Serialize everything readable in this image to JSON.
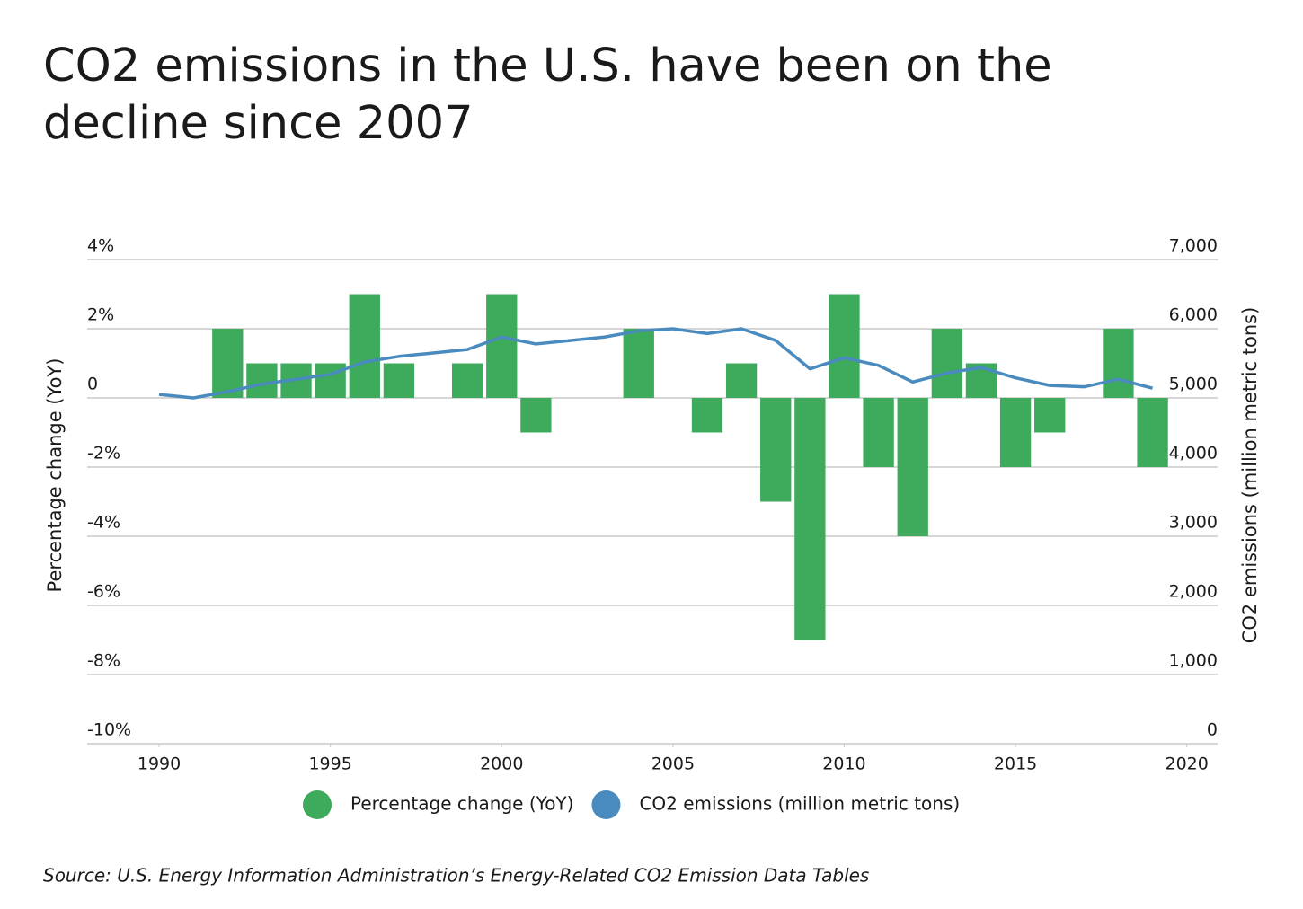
{
  "chart_data": {
    "type": "bar",
    "title": "CO2 emissions in the U.S. have been on the decline since 2007",
    "y_label": "Percentage change (YoY)",
    "y2_label": "CO2 emissions (million metric tons)",
    "source": "Source:  U.S. Energy Information Administration’s Energy-Related CO2 Emission Data Tables",
    "x": [
      1990,
      1991,
      1992,
      1993,
      1994,
      1995,
      1996,
      1997,
      1998,
      1999,
      2000,
      2001,
      2002,
      2003,
      2004,
      2005,
      2006,
      2007,
      2008,
      2009,
      2010,
      2011,
      2012,
      2013,
      2014,
      2015,
      2016,
      2017,
      2018,
      2019
    ],
    "xlim": [
      1987.9,
      2020.9
    ],
    "xticks": [
      1990,
      1995,
      2000,
      2005,
      2010,
      2015,
      2020
    ],
    "ylim": [
      -10,
      4
    ],
    "yticks": [
      {
        "value": -10,
        "label": "-10%"
      },
      {
        "value": -8,
        "label": "-8%"
      },
      {
        "value": -6,
        "label": "-6%"
      },
      {
        "value": -4,
        "label": "-4%"
      },
      {
        "value": -2,
        "label": "-2%"
      },
      0,
      {
        "value": 2,
        "label": "2%"
      },
      {
        "value": 4,
        "label": "4%"
      }
    ],
    "y2lim": [
      0,
      7000
    ],
    "y2ticks": [
      0,
      {
        "value": 1000,
        "label": "1,000"
      },
      {
        "value": 2000,
        "label": "2,000"
      },
      {
        "value": 3000,
        "label": "3,000"
      },
      {
        "value": 4000,
        "label": "4,000"
      },
      {
        "value": 5000,
        "label": "5,000"
      },
      {
        "value": 6000,
        "label": "6,000"
      },
      {
        "value": 7000,
        "label": "7,000"
      }
    ],
    "grid": true,
    "series": [
      {
        "name": "Percentage change (YoY)",
        "type": "bar",
        "color": "#3daa5c",
        "values": [
          0,
          0,
          2,
          1,
          1,
          1,
          3,
          1,
          0,
          1,
          3,
          -1,
          0,
          0,
          2,
          0,
          -1,
          1,
          -3,
          -7,
          3,
          -2,
          -4,
          2,
          1,
          -2,
          -1,
          0,
          2,
          -2
        ]
      },
      {
        "name": "CO2 emissions (million metric tons)",
        "type": "line",
        "axis": "y2",
        "color": "#4a8bbf",
        "values": [
          5050,
          5000,
          5090,
          5200,
          5270,
          5340,
          5520,
          5600,
          5650,
          5700,
          5880,
          5780,
          5830,
          5880,
          5970,
          6000,
          5930,
          6000,
          5830,
          5420,
          5580,
          5470,
          5230,
          5360,
          5440,
          5290,
          5180,
          5160,
          5270,
          5140
        ]
      }
    ]
  }
}
